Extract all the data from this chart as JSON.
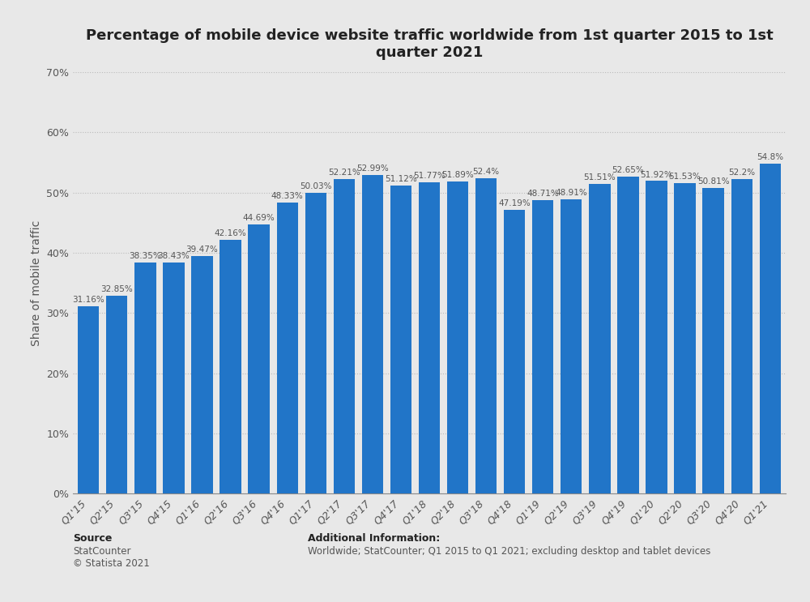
{
  "title": "Percentage of mobile device website traffic worldwide from 1st quarter 2015 to 1st\nquarter 2021",
  "ylabel": "Share of mobile traffic",
  "categories": [
    "Q1'15",
    "Q2'15",
    "Q3'15",
    "Q4'15",
    "Q1'16",
    "Q2'16",
    "Q3'16",
    "Q4'16",
    "Q1'17",
    "Q2'17",
    "Q3'17",
    "Q4'17",
    "Q1'18",
    "Q2'18",
    "Q3'18",
    "Q4'18",
    "Q1'19",
    "Q2'19",
    "Q3'19",
    "Q4'19",
    "Q1'20",
    "Q2'20",
    "Q3'20",
    "Q4'20",
    "Q1'21"
  ],
  "values": [
    31.16,
    32.85,
    38.35,
    38.43,
    39.47,
    42.16,
    44.69,
    48.33,
    50.03,
    52.21,
    52.99,
    51.12,
    51.77,
    51.89,
    52.4,
    47.19,
    48.71,
    48.91,
    51.51,
    52.65,
    51.92,
    51.53,
    50.81,
    52.2,
    54.8
  ],
  "bar_color": "#2175c8",
  "background_color": "#e8e8e8",
  "plot_background": "#e8e8e8",
  "ylim": [
    0,
    70
  ],
  "yticks": [
    0,
    10,
    20,
    30,
    40,
    50,
    60,
    70
  ],
  "source_bold": "Source",
  "source_normal": "StatCounter\n© Statista 2021",
  "additional_info_title": "Additional Information:",
  "additional_info": "Worldwide; StatCounter; Q1 2015 to Q1 2021; excluding desktop and tablet devices",
  "title_fontsize": 13,
  "label_fontsize": 7.5,
  "tick_fontsize": 9,
  "ylabel_fontsize": 10
}
